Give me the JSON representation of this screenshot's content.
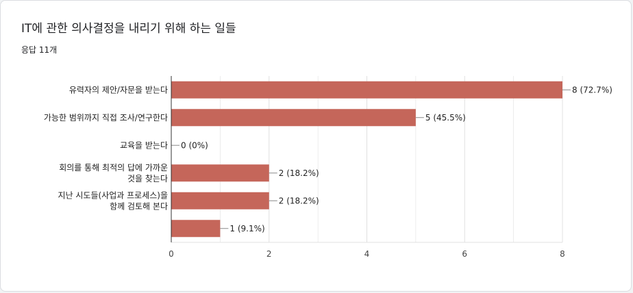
{
  "question": {
    "title": "IT에 관한 의사결정을 내리기 위해 하는 일들",
    "response_count": "응답 11개"
  },
  "colors": {
    "bar": "#c5665a",
    "grid": "#e0e0e0",
    "axis": "#333333"
  },
  "chart_data": {
    "type": "bar",
    "orientation": "horizontal",
    "title": "",
    "xlabel": "",
    "ylabel": "",
    "categories": [
      [
        "유력자의 제안/자문을 받는다"
      ],
      [
        "가능한 범위까지 직접 조사/연구한다"
      ],
      [
        "교육을 받는다"
      ],
      [
        "회의를 통해 최적의 답에 가까운",
        "것을 찾는다"
      ],
      [
        "지난 시도들(사업과 프로세스)을",
        "함께 검토해 본다"
      ],
      []
    ],
    "values": [
      8,
      5,
      0,
      2,
      2,
      1
    ],
    "value_labels": [
      "8 (72.7%)",
      "5 (45.5%)",
      "0 (0%)",
      "2 (18.2%)",
      "2 (18.2%)",
      "1 (9.1%)"
    ],
    "xlim": [
      0,
      8
    ],
    "xticks": [
      0,
      2,
      4,
      6,
      8
    ],
    "grid": true
  }
}
